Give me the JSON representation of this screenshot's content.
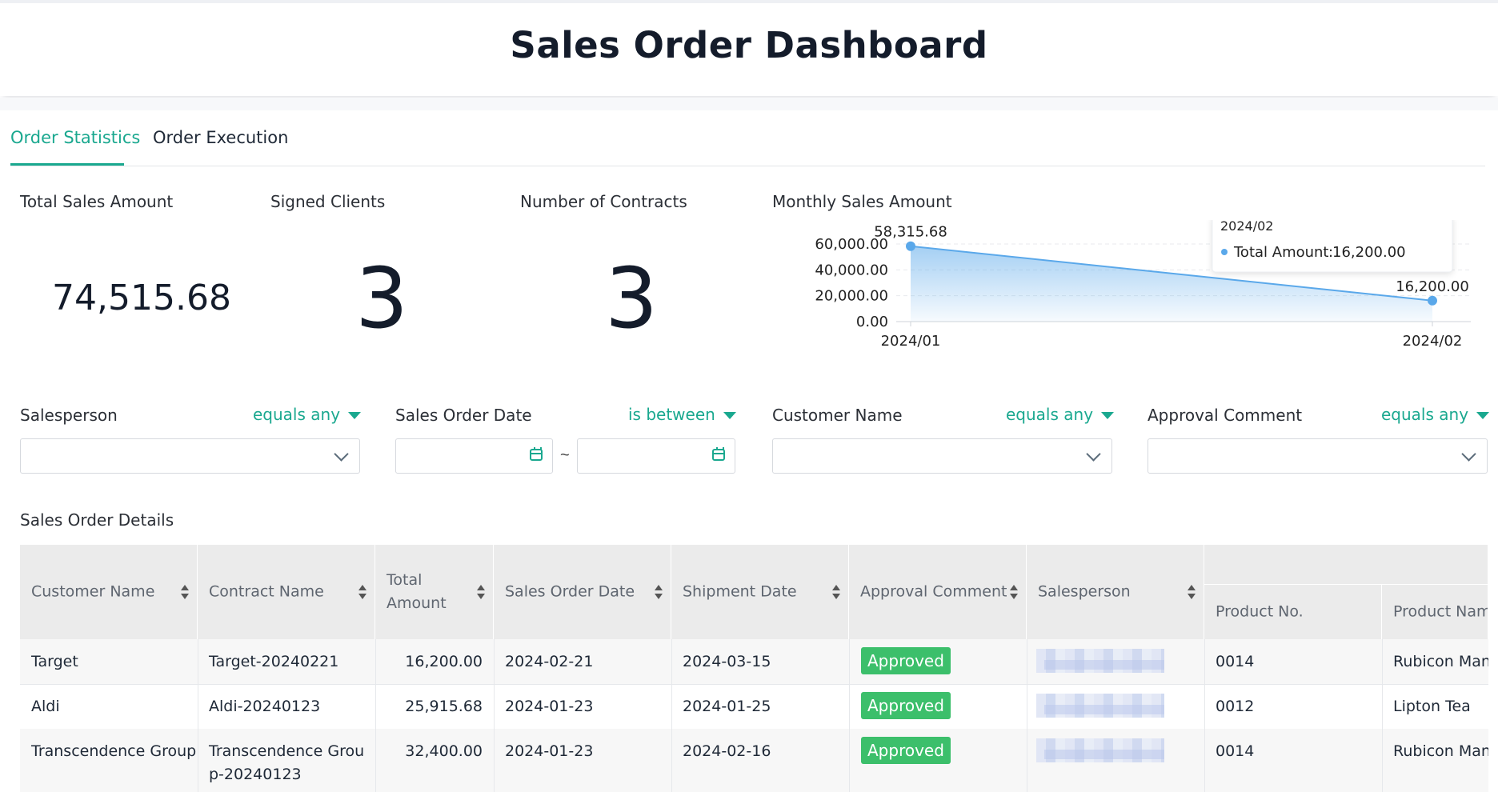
{
  "page": {
    "title": "Sales Order Dashboard"
  },
  "tabs": [
    {
      "label": "Order Statistics",
      "active": true
    },
    {
      "label": "Order Execution",
      "active": false
    }
  ],
  "kpis": {
    "total_sales": {
      "label": "Total Sales Amount",
      "value": "74,515.68"
    },
    "signed_clients": {
      "label": "Signed Clients",
      "value": "3"
    },
    "contracts": {
      "label": "Number of Contracts",
      "value": "3"
    }
  },
  "monthly_chart": {
    "label": "Monthly Sales Amount",
    "tooltip": {
      "title": "2024/02",
      "series": "Total Amount",
      "value": "16,200.00"
    }
  },
  "chart_data": {
    "type": "area",
    "title": "Monthly Sales Amount",
    "x": [
      "2024/01",
      "2024/02"
    ],
    "series": [
      {
        "name": "Total Amount",
        "values": [
          58315.68,
          16200.0
        ]
      }
    ],
    "data_labels": [
      "58,315.68",
      "16,200.00"
    ],
    "y_ticks": [
      "0.00",
      "20,000.00",
      "40,000.00",
      "60,000.00"
    ],
    "ylim": [
      0,
      60000
    ],
    "grid": true,
    "color": "#5aa8ea"
  },
  "filters": [
    {
      "label": "Salesperson",
      "operator": "equals any",
      "value": ""
    },
    {
      "label": "Sales Order Date",
      "operator": "is between",
      "from": "",
      "to": "",
      "separator": "~"
    },
    {
      "label": "Customer Name",
      "operator": "equals any",
      "value": ""
    },
    {
      "label": "Approval Comment",
      "operator": "equals any",
      "value": ""
    }
  ],
  "details": {
    "title": "Sales Order Details",
    "columns": [
      "Customer Name",
      "Contract Name",
      "Total Amount",
      "Sales Order Date",
      "Shipment Date",
      "Approval Comment",
      "Salesperson",
      "Product No.",
      "Product Name"
    ],
    "rows": [
      {
        "customer": "Target",
        "contract": "Target-20240221",
        "amount": "16,200.00",
        "order_date": "2024-02-21",
        "ship_date": "2024-03-15",
        "approval": "Approved",
        "product_no": "0014",
        "product_name": "Rubicon Mang"
      },
      {
        "customer": "Aldi",
        "contract": "Aldi-20240123",
        "amount": "25,915.68",
        "order_date": "2024-01-23",
        "ship_date": "2024-01-25",
        "approval": "Approved",
        "product_no": "0012",
        "product_name": "Lipton Tea"
      },
      {
        "customer": "Transcendence Group",
        "contract": "Transcendence Group-20240123",
        "amount": "32,400.00",
        "order_date": "2024-01-23",
        "ship_date": "2024-02-16",
        "approval": "Approved",
        "product_no": "0014",
        "product_name": "Rubicon Mang"
      }
    ]
  },
  "colors": {
    "accent": "#1aa88f",
    "badge": "#3cbf6b",
    "chart_line": "#5aa8ea"
  }
}
